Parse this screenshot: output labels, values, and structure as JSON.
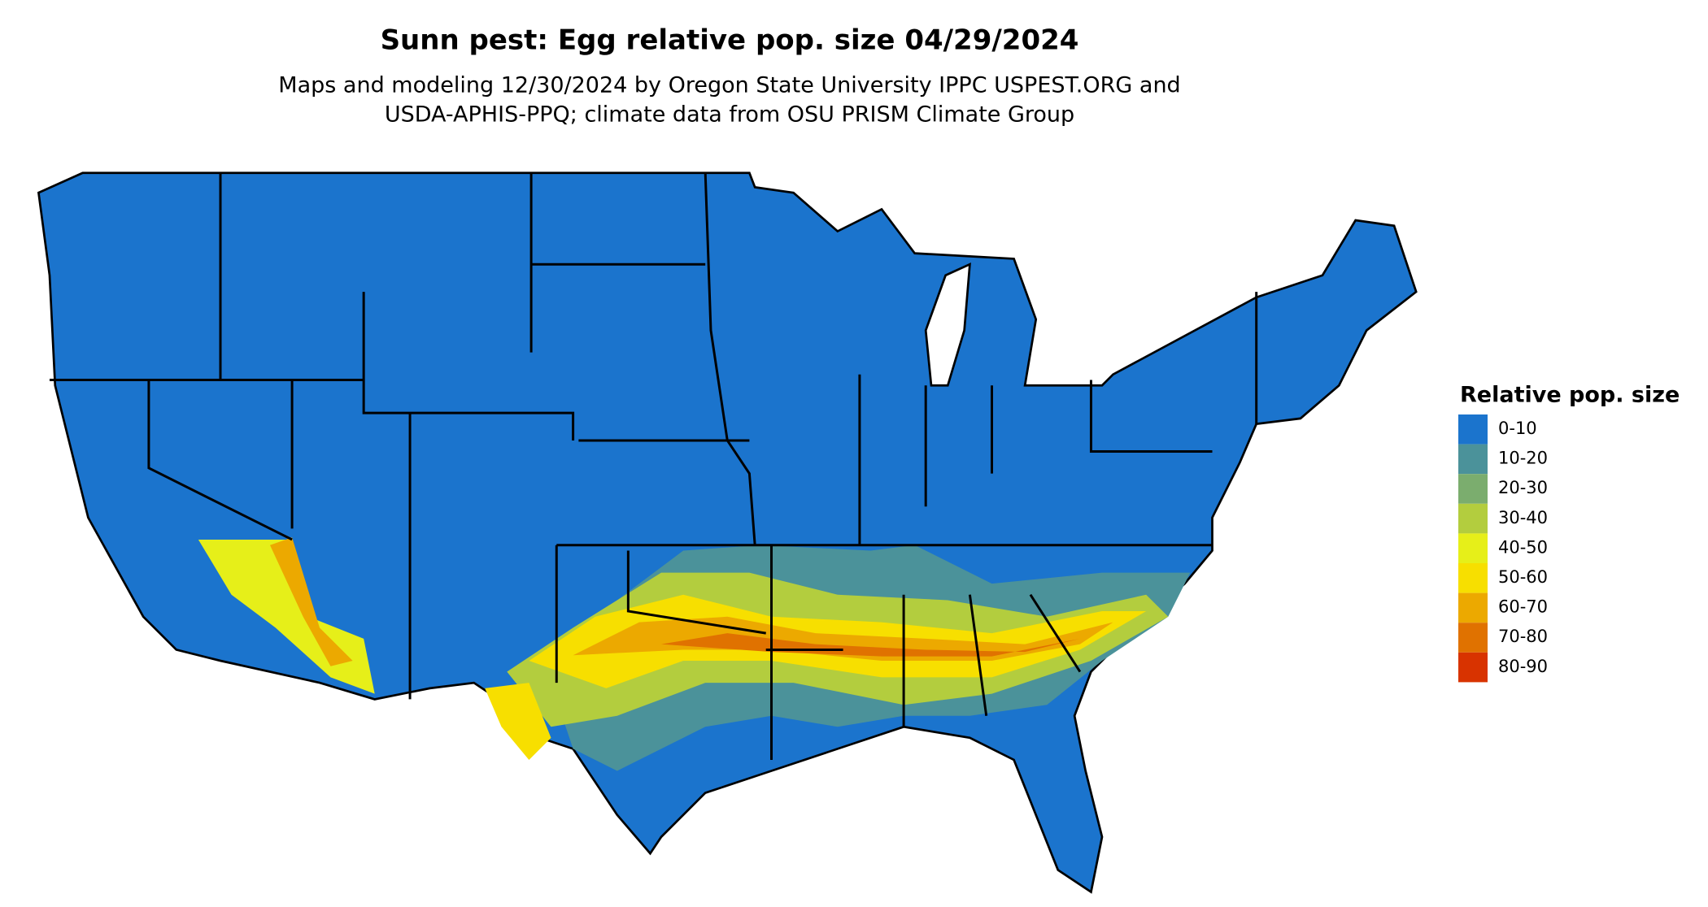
{
  "title": "Sunn pest: Egg relative pop. size 04/29/2024",
  "subtitle": [
    "Maps and modeling 12/30/2024 by Oregon State University IPPC USPEST.ORG and",
    "USDA-APHIS-PPQ; climate data from OSU PRISM Climate Group"
  ],
  "legend": {
    "title": "Relative pop. size",
    "items": [
      {
        "label": "0-10",
        "color": "#1b74cd"
      },
      {
        "label": "10-20",
        "color": "#4b929a"
      },
      {
        "label": "20-30",
        "color": "#7bad6e"
      },
      {
        "label": "30-40",
        "color": "#b3cd3e"
      },
      {
        "label": "40-50",
        "color": "#e6ef19"
      },
      {
        "label": "50-60",
        "color": "#f7df00"
      },
      {
        "label": "60-70",
        "color": "#eca900"
      },
      {
        "label": "70-80",
        "color": "#e07200"
      },
      {
        "label": "80-90",
        "color": "#d83300"
      }
    ]
  }
}
